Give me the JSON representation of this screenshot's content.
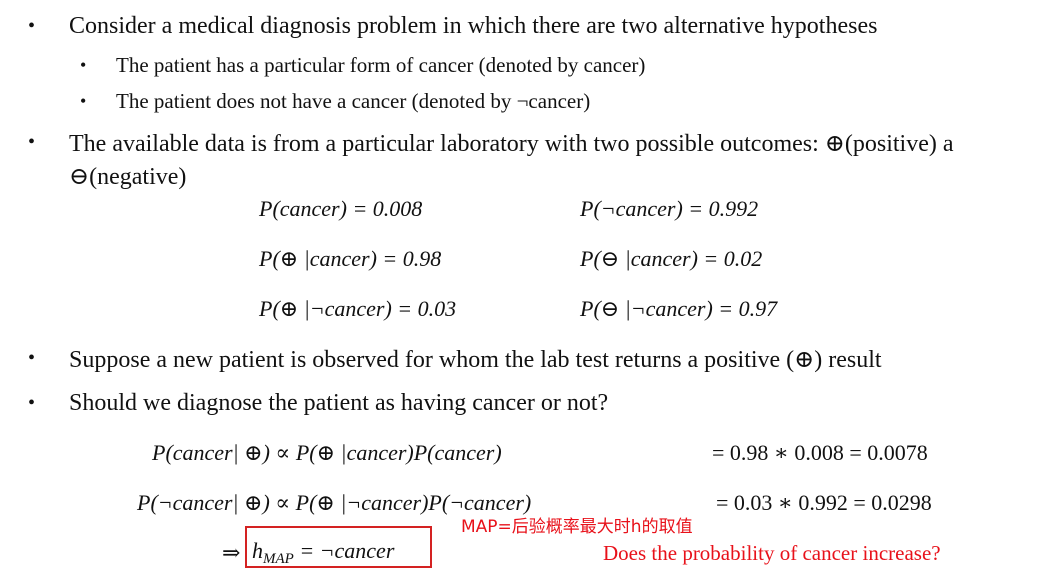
{
  "bullets": {
    "b1": "Consider a medical diagnosis problem in which there are two alternative hypotheses",
    "b1_sub1": "The patient has a particular form of cancer (denoted by cancer)",
    "b1_sub2": "The patient does not have a cancer (denoted by ¬cancer)",
    "b2_line1": "The available data is from a particular laboratory with two possible outcomes: ⊕(positive) a",
    "b2_line2": "⊖(negative)",
    "b3": "Suppose a new patient is observed for whom the lab test returns a positive (⊕) result",
    "b4": "Should we diagnose the patient as having cancer or not?"
  },
  "probabilities": {
    "p_cancer": "P(cancer) = 0.008",
    "p_not_cancer": "P(¬cancer) = 0.992",
    "p_pos_cancer": "P(⊕ |cancer) = 0.98",
    "p_neg_cancer": "P(⊖ |cancer) = 0.02",
    "p_pos_not_cancer": "P(⊕ |¬cancer) = 0.03",
    "p_neg_not_cancer": "P(⊖ |¬cancer) = 0.97"
  },
  "posterior": {
    "row1_lhs": "P(cancer| ⊕) ∝ P(⊕ |cancer)P(cancer)",
    "row1_rhs": "= 0.98 ∗ 0.008 = 0.0078",
    "row2_lhs": "P(¬cancer| ⊕) ∝ P(⊕ |¬cancer)P(¬cancer)",
    "row2_rhs": "= 0.03 ∗ 0.992 = 0.0298",
    "implies": "⇒",
    "h_map_h": "h",
    "h_map_sub": "MAP",
    "h_map_rhs": " = ¬cancer"
  },
  "annotations": {
    "map_note": "MAP=后验概率最大时h的取值",
    "question": "Does the probability of cancer increase?"
  },
  "colors": {
    "annotation_red": "#e8111a",
    "box_red": "#d42222"
  }
}
